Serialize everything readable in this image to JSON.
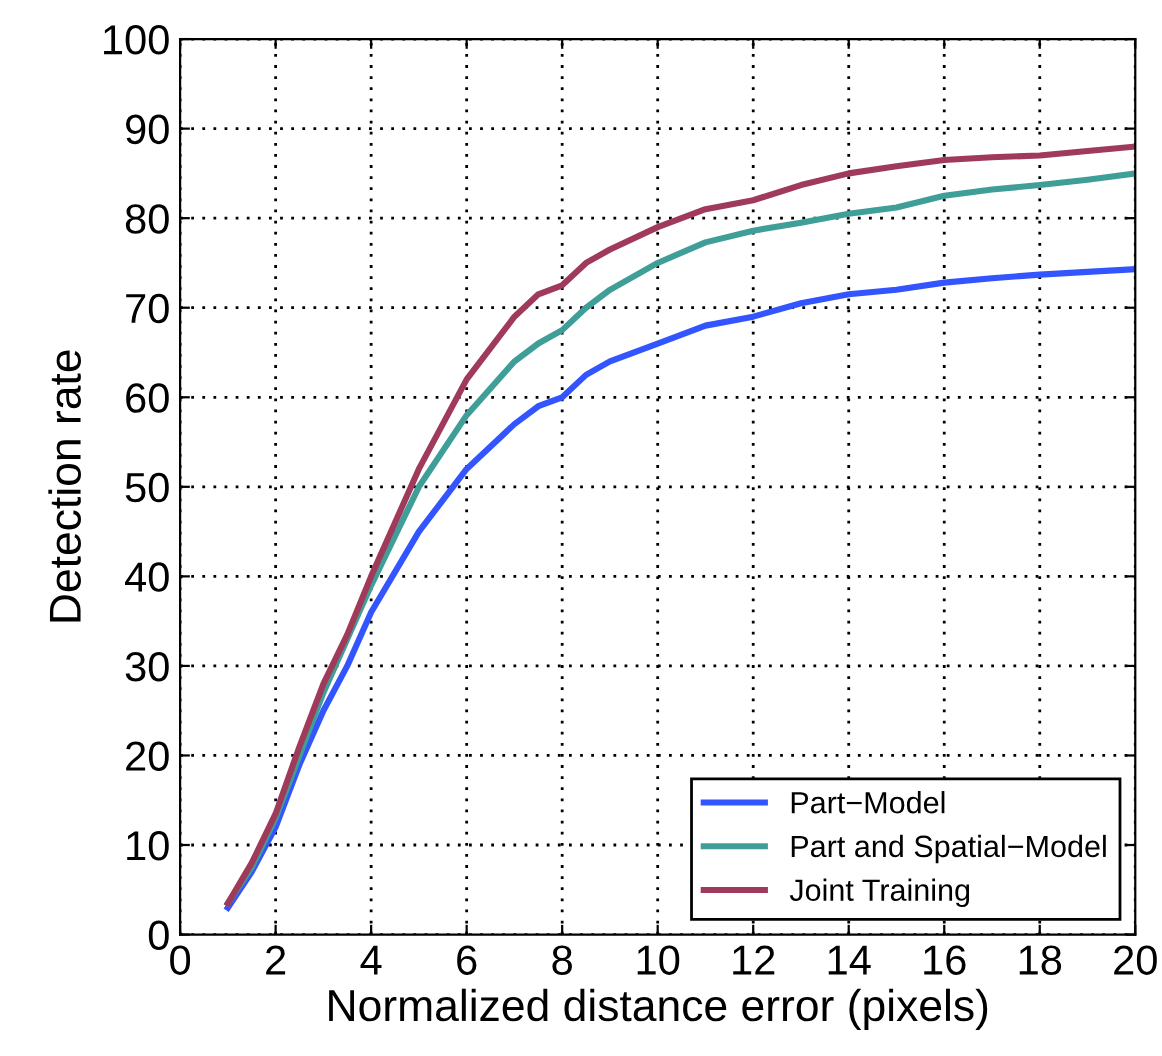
{
  "chart_data": {
    "type": "line",
    "xlabel": "Normalized distance error (pixels)",
    "ylabel": "Detection rate",
    "x": [
      1,
      1.5,
      2,
      2.5,
      3,
      3.5,
      4,
      5,
      6,
      7,
      7.5,
      8,
      8.5,
      9,
      10,
      11,
      12,
      13,
      14,
      15,
      16,
      17,
      18,
      19,
      20
    ],
    "series": [
      {
        "name": "Part−Model",
        "color": "#3355ff",
        "values": [
          3,
          7,
          12,
          19,
          25,
          30,
          36,
          45,
          52,
          57,
          59,
          60,
          62.5,
          64,
          66,
          68,
          69,
          70.5,
          71.5,
          72,
          72.8,
          73.3,
          73.7,
          74,
          74.3
        ]
      },
      {
        "name": "Part and Spatial−Model",
        "color": "#3f9f98",
        "values": [
          3.5,
          7.5,
          13,
          20,
          27,
          33,
          39,
          50,
          58,
          64,
          66,
          67.5,
          70,
          72,
          75,
          77.3,
          78.6,
          79.5,
          80.5,
          81.2,
          82.5,
          83.2,
          83.7,
          84.3,
          85
        ]
      },
      {
        "name": "Joint Training",
        "color": "#a03a5a",
        "values": [
          3.5,
          8,
          13.5,
          21,
          28,
          33.5,
          40,
          52,
          62,
          69,
          71.5,
          72.5,
          75,
          76.5,
          79,
          81,
          82,
          83.7,
          85,
          85.8,
          86.5,
          86.8,
          87,
          87.5,
          88
        ]
      }
    ],
    "xlim": [
      0,
      20
    ],
    "xticks": [
      0,
      2,
      4,
      6,
      8,
      10,
      12,
      14,
      16,
      18,
      20
    ],
    "ylim": [
      0,
      100
    ],
    "yticks": [
      0,
      10,
      20,
      30,
      40,
      50,
      60,
      70,
      80,
      90,
      100
    ],
    "grid": true,
    "legend": "bottom right",
    "line_style": "solid",
    "marker": "none"
  }
}
